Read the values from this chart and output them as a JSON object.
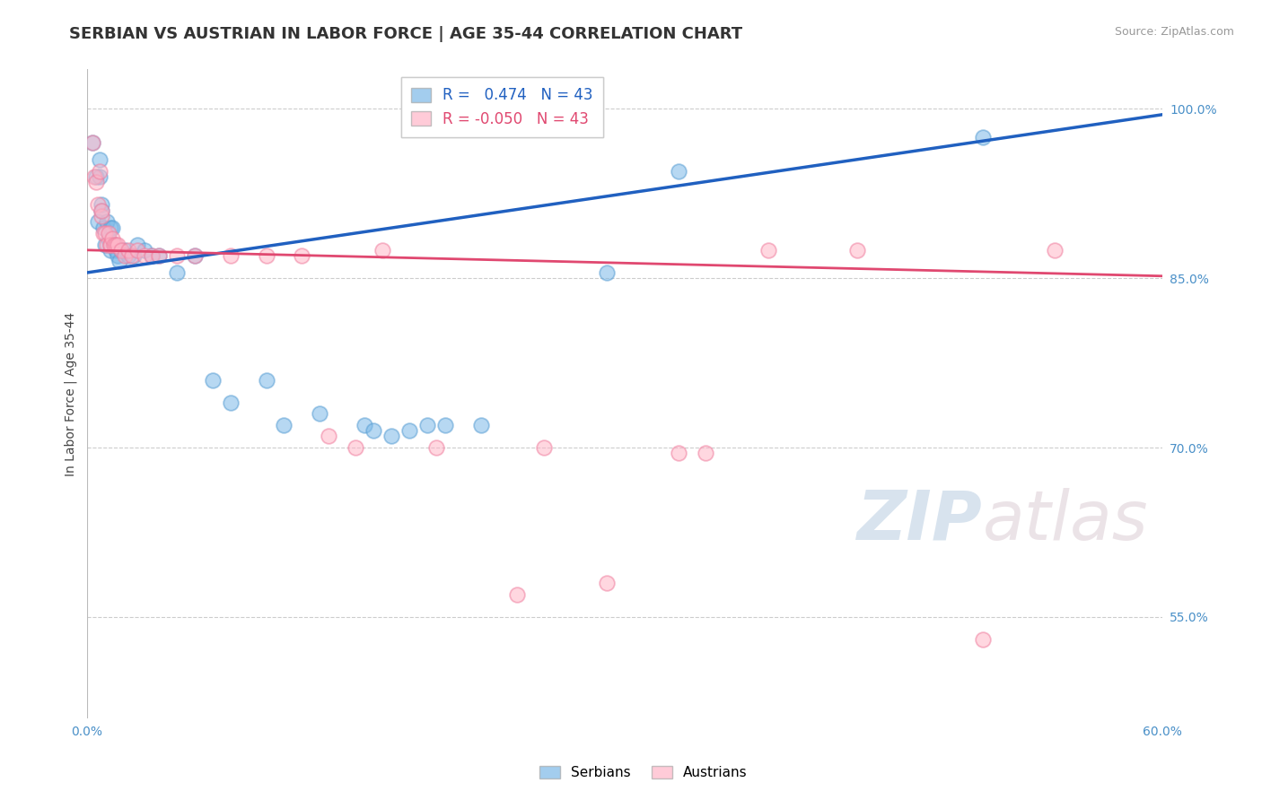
{
  "title": "SERBIAN VS AUSTRIAN IN LABOR FORCE | AGE 35-44 CORRELATION CHART",
  "source": "Source: ZipAtlas.com",
  "ylabel": "In Labor Force | Age 35-44",
  "xlim": [
    0.0,
    0.6
  ],
  "ylim": [
    0.46,
    1.035
  ],
  "ytick_positions": [
    0.55,
    0.7,
    0.85,
    1.0
  ],
  "yticklabels": [
    "55.0%",
    "70.0%",
    "85.0%",
    "100.0%"
  ],
  "xtick_pos": [
    0.0,
    0.1,
    0.2,
    0.3,
    0.4,
    0.5,
    0.6
  ],
  "xticklabels": [
    "0.0%",
    "",
    "",
    "",
    "",
    "",
    "60.0%"
  ],
  "blue_color": "#7CB9E8",
  "pink_color": "#FFB6C8",
  "blue_edge_color": "#5A9FD4",
  "pink_edge_color": "#F080A0",
  "blue_line_color": "#2060C0",
  "pink_line_color": "#E04870",
  "r_blue": 0.474,
  "n_blue": 43,
  "r_pink": -0.05,
  "n_pink": 43,
  "watermark_zip": "ZIP",
  "watermark_atlas": "atlas",
  "legend_label_blue": "Serbians",
  "legend_label_pink": "Austrians",
  "blue_x": [
    0.003,
    0.005,
    0.006,
    0.007,
    0.007,
    0.008,
    0.008,
    0.009,
    0.01,
    0.011,
    0.012,
    0.013,
    0.013,
    0.014,
    0.015,
    0.016,
    0.017,
    0.018,
    0.019,
    0.021,
    0.023,
    0.026,
    0.028,
    0.032,
    0.036,
    0.04,
    0.05,
    0.06,
    0.07,
    0.08,
    0.1,
    0.11,
    0.13,
    0.155,
    0.16,
    0.17,
    0.18,
    0.19,
    0.2,
    0.22,
    0.29,
    0.33,
    0.5
  ],
  "blue_y": [
    0.97,
    0.94,
    0.9,
    0.94,
    0.955,
    0.915,
    0.91,
    0.895,
    0.88,
    0.9,
    0.885,
    0.895,
    0.875,
    0.895,
    0.88,
    0.875,
    0.87,
    0.865,
    0.875,
    0.875,
    0.87,
    0.87,
    0.88,
    0.875,
    0.87,
    0.87,
    0.855,
    0.87,
    0.76,
    0.74,
    0.76,
    0.72,
    0.73,
    0.72,
    0.715,
    0.71,
    0.715,
    0.72,
    0.72,
    0.72,
    0.855,
    0.945,
    0.975
  ],
  "pink_x": [
    0.003,
    0.004,
    0.005,
    0.006,
    0.007,
    0.008,
    0.008,
    0.009,
    0.01,
    0.011,
    0.012,
    0.013,
    0.013,
    0.014,
    0.015,
    0.016,
    0.017,
    0.019,
    0.021,
    0.023,
    0.025,
    0.028,
    0.032,
    0.036,
    0.04,
    0.05,
    0.06,
    0.08,
    0.1,
    0.12,
    0.135,
    0.15,
    0.165,
    0.195,
    0.24,
    0.255,
    0.29,
    0.33,
    0.345,
    0.38,
    0.43,
    0.5,
    0.54
  ],
  "pink_y": [
    0.97,
    0.94,
    0.935,
    0.915,
    0.945,
    0.905,
    0.91,
    0.89,
    0.89,
    0.88,
    0.89,
    0.88,
    0.88,
    0.885,
    0.88,
    0.88,
    0.88,
    0.875,
    0.87,
    0.875,
    0.87,
    0.875,
    0.87,
    0.87,
    0.87,
    0.87,
    0.87,
    0.87,
    0.87,
    0.87,
    0.71,
    0.7,
    0.875,
    0.7,
    0.57,
    0.7,
    0.58,
    0.695,
    0.695,
    0.875,
    0.875,
    0.53,
    0.875
  ],
  "grid_color": "#CCCCCC",
  "background_color": "#FFFFFF",
  "title_fontsize": 13,
  "tick_fontsize": 10,
  "axis_label_fontsize": 10,
  "marker_size": 12,
  "source_text": "Source: ZipAtlas.com"
}
